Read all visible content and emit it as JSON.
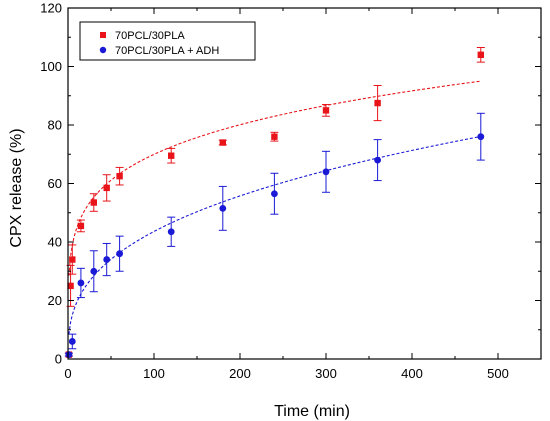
{
  "chart_data": {
    "type": "scatter",
    "title": "",
    "xlabel": "Time (min)",
    "ylabel": "CPX release (%)",
    "xlim": [
      0,
      550
    ],
    "ylim": [
      0,
      120
    ],
    "xticks": [
      0,
      100,
      200,
      300,
      400,
      500
    ],
    "yticks": [
      0,
      20,
      40,
      60,
      80,
      100,
      120
    ],
    "xtick_labels": [
      "0",
      "100",
      "200",
      "300",
      "400",
      "500"
    ],
    "ytick_labels": [
      "0",
      "20",
      "40",
      "60",
      "80",
      "100",
      "120"
    ],
    "grid": false,
    "legend_position": "top-left",
    "series": [
      {
        "name": "70PCL/30PLA",
        "color": "#e8141a",
        "marker": "square",
        "x": [
          1,
          3,
          5,
          15,
          30,
          45,
          60,
          120,
          180,
          240,
          300,
          360,
          480
        ],
        "y": [
          1.5,
          25,
          34,
          45.5,
          53.5,
          58.5,
          62.5,
          69.5,
          74,
          76,
          85,
          87.5,
          104
        ],
        "err": [
          0.5,
          7,
          5,
          2,
          3,
          4.5,
          3,
          2.5,
          0.8,
          1.5,
          2,
          6,
          2.5
        ],
        "fit": {
          "type": "power",
          "a": 28.5,
          "b": 0.195
        }
      },
      {
        "name": "70PCL/30PLA + ADH",
        "color": "#1a1ad6",
        "marker": "circle",
        "x": [
          1,
          5,
          15,
          30,
          45,
          60,
          120,
          180,
          240,
          300,
          360,
          480
        ],
        "y": [
          1.5,
          6,
          26,
          30,
          34,
          36,
          43.5,
          51.5,
          56.5,
          64,
          68,
          76
        ],
        "err": [
          0.5,
          2.5,
          5,
          7,
          5.5,
          6,
          5,
          7.5,
          7,
          7,
          7,
          8
        ],
        "fit": {
          "type": "power",
          "a": 8.5,
          "b": 0.355
        }
      }
    ]
  }
}
